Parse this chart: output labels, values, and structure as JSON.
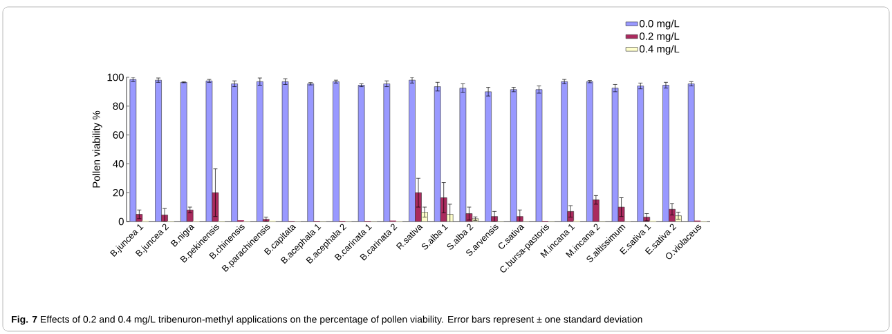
{
  "chart_data": {
    "type": "bar",
    "ylabel": "Pollen viability %",
    "categories": [
      "B.juncea 1",
      "B.juncea 2",
      "B.nigra",
      "B.pekinensis",
      "B.chinensis",
      "B.parachinensis",
      "B.capitata",
      "B.acephala 1",
      "B.acephala 2",
      "B.carinata 1",
      "B.carinata 2",
      "R.sativa",
      "S.alba 1",
      "S.alba 2",
      "S.arvensis",
      "C.sativa",
      "C.bursa-pastoris",
      "M.incana 1",
      "M.incana 2",
      "S.altissimum",
      "E.sativa 1",
      "E.sativa 2",
      "O.violaceus"
    ],
    "series": [
      {
        "name": "0.0 mg/L",
        "color": "#9999ff",
        "values": [
          98.5,
          98,
          96.5,
          97.5,
          95.5,
          97,
          97,
          95.5,
          97,
          94.5,
          95.5,
          98,
          93.5,
          92.5,
          90,
          91.5,
          91.5,
          97,
          97,
          92.5,
          94,
          94.5,
          95.5
        ],
        "errors": [
          1.5,
          1.5,
          0.3,
          1,
          2,
          2.5,
          2,
          0.8,
          1,
          1,
          2,
          2,
          3,
          3,
          3,
          1.5,
          2.5,
          1.5,
          0.8,
          2.5,
          2,
          2,
          1.5
        ]
      },
      {
        "name": "0.2 mg/L",
        "color": "#aa2a5e",
        "values": [
          5,
          4.5,
          8,
          20,
          0.8,
          1.5,
          0,
          0.2,
          0.2,
          0.2,
          0.5,
          20,
          16.5,
          5.5,
          3.5,
          3.5,
          0.2,
          7,
          15,
          10,
          3,
          8.5,
          0.5
        ],
        "errors": [
          3,
          4.5,
          2,
          16.5,
          null,
          1.5,
          null,
          null,
          null,
          null,
          null,
          10,
          10.5,
          4.5,
          3.5,
          4.5,
          null,
          4,
          3,
          6.5,
          2.5,
          4,
          null
        ]
      },
      {
        "name": "0.4 mg/L",
        "color": "#ffffcc",
        "values": [
          0.5,
          0.2,
          0.3,
          0.2,
          0.2,
          0.5,
          0,
          0,
          0,
          0,
          0.2,
          6.5,
          5,
          2,
          0,
          0,
          0,
          0.5,
          0,
          0,
          0.5,
          4,
          0.2
        ],
        "errors": [
          null,
          null,
          null,
          null,
          null,
          null,
          null,
          null,
          null,
          null,
          null,
          3.5,
          7,
          1.2,
          null,
          null,
          null,
          null,
          null,
          null,
          null,
          2.5,
          null
        ]
      }
    ],
    "ylim": [
      0,
      100
    ],
    "yticks": [
      0,
      20,
      40,
      60,
      80,
      100
    ],
    "legend": "top right",
    "annotations": [
      "**Fig. 7** Effects of 0.2 and 0.4 mg/L tribenuron-methyl applications on the percentage of pollen viability. Error bars represent ± one standard deviation"
    ]
  }
}
